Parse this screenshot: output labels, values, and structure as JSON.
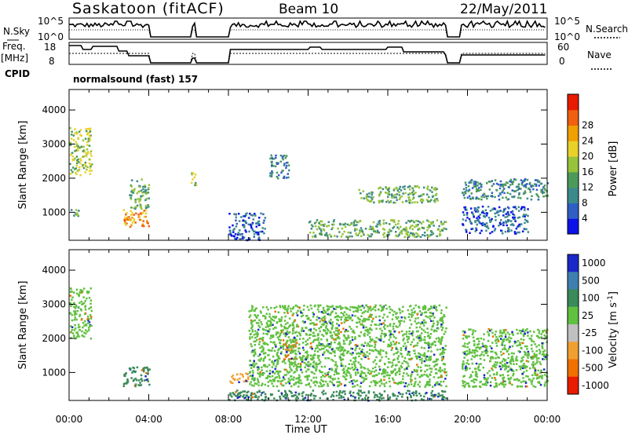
{
  "header": {
    "station": "Saskatoon (fitACF)",
    "beam": "Beam 10",
    "date": "22/May/2011"
  },
  "panels": {
    "nsky": {
      "left_label": "N.Sky",
      "right_label": "N.Search",
      "left_ticks": [
        "10^5",
        "10^0"
      ],
      "right_ticks": [
        "10^5",
        "10^0"
      ]
    },
    "freq": {
      "left_label_line1": "Freq.",
      "left_label_line2": "[MHz]",
      "right_label": "Nave",
      "left_ticks": [
        "18",
        "8"
      ],
      "right_ticks": [
        "60",
        "0"
      ]
    },
    "cpid": {
      "label": "CPID",
      "program": "normalsound (fast) 157"
    }
  },
  "chart_data": [
    {
      "type": "heatmap",
      "name": "power",
      "ylabel": "Slant Range [km]",
      "xlabel": "Time UT",
      "x_ticks": [
        "00:00",
        "04:00",
        "08:00",
        "12:00",
        "16:00",
        "20:00",
        "00:00"
      ],
      "x_range_hours": [
        0,
        24
      ],
      "ylim": [
        180,
        4600
      ],
      "y_ticks": [
        1000,
        2000,
        3000,
        4000
      ],
      "colorbar": {
        "label": "Power [dB]",
        "ticks": [
          4,
          8,
          12,
          16,
          20,
          24,
          28
        ],
        "colors": [
          "#0b12e8",
          "#2f5fc4",
          "#3d8a8a",
          "#4b9a5a",
          "#97c33a",
          "#e8d22a",
          "#f0a000",
          "#f06010",
          "#e81a00"
        ]
      },
      "data_gaps_hours": [
        [
          4.05,
          6.1
        ],
        [
          6.35,
          8.0
        ],
        [
          18.9,
          19.7
        ]
      ],
      "echo_regions": [
        {
          "t": [
            0.0,
            1.1
          ],
          "r": [
            2100,
            3500
          ],
          "level": 20
        },
        {
          "t": [
            0.0,
            0.6
          ],
          "r": [
            900,
            1100
          ],
          "level": 16
        },
        {
          "t": [
            2.7,
            4.0
          ],
          "r": [
            600,
            1100
          ],
          "level": 28
        },
        {
          "t": [
            3.0,
            4.0
          ],
          "r": [
            1100,
            2000
          ],
          "level": 16
        },
        {
          "t": [
            6.1,
            6.35
          ],
          "r": [
            1700,
            2200
          ],
          "level": 20
        },
        {
          "t": [
            8.0,
            9.8
          ],
          "r": [
            200,
            1000
          ],
          "level": 8
        },
        {
          "t": [
            10.0,
            11.0
          ],
          "r": [
            2000,
            2700
          ],
          "level": 12
        },
        {
          "t": [
            12.0,
            18.9
          ],
          "r": [
            300,
            800
          ],
          "level": 16
        },
        {
          "t": [
            14.5,
            18.5
          ],
          "r": [
            1300,
            1800
          ],
          "level": 16
        },
        {
          "t": [
            19.7,
            24.0
          ],
          "r": [
            1400,
            2000
          ],
          "level": 12
        },
        {
          "t": [
            19.7,
            23.0
          ],
          "r": [
            400,
            1200
          ],
          "level": 8
        }
      ]
    },
    {
      "type": "heatmap",
      "name": "velocity",
      "ylabel": "Slant Range [km]",
      "xlabel": "Time UT",
      "x_ticks": [
        "00:00",
        "04:00",
        "08:00",
        "12:00",
        "16:00",
        "20:00",
        "00:00"
      ],
      "x_range_hours": [
        0,
        24
      ],
      "ylim": [
        180,
        4600
      ],
      "y_ticks": [
        1000,
        2000,
        3000,
        4000
      ],
      "colorbar": {
        "label": "Velocity [m s",
        "label_sup": "-1",
        "label_end": "]",
        "ticks": [
          1000,
          500,
          100,
          25,
          -25,
          -100,
          -500,
          -1000
        ],
        "colors": [
          "#1a28c8",
          "#3f7fb0",
          "#3a8a5a",
          "#60c040",
          "#c0c0c0",
          "#f0a030",
          "#f07000",
          "#e81a00"
        ]
      },
      "data_gaps_hours": [
        [
          4.05,
          6.1
        ],
        [
          6.35,
          8.0
        ],
        [
          18.9,
          19.7
        ]
      ],
      "echo_regions": [
        {
          "t": [
            0.0,
            1.1
          ],
          "r": [
            2000,
            3500
          ],
          "level": 0
        },
        {
          "t": [
            2.7,
            4.0
          ],
          "r": [
            600,
            1200
          ],
          "level": 100
        },
        {
          "t": [
            10.7,
            11.4
          ],
          "r": [
            1400,
            2000
          ],
          "level": -500
        },
        {
          "t": [
            8.0,
            9.0
          ],
          "r": [
            700,
            1000
          ],
          "level": -100
        },
        {
          "t": [
            8.0,
            18.9
          ],
          "r": [
            200,
            500
          ],
          "level": 100
        },
        {
          "t": [
            9.0,
            18.9
          ],
          "r": [
            600,
            3000
          ],
          "level": 0
        },
        {
          "t": [
            19.7,
            24.0
          ],
          "r": [
            600,
            2300
          ],
          "level": 0
        }
      ]
    }
  ]
}
